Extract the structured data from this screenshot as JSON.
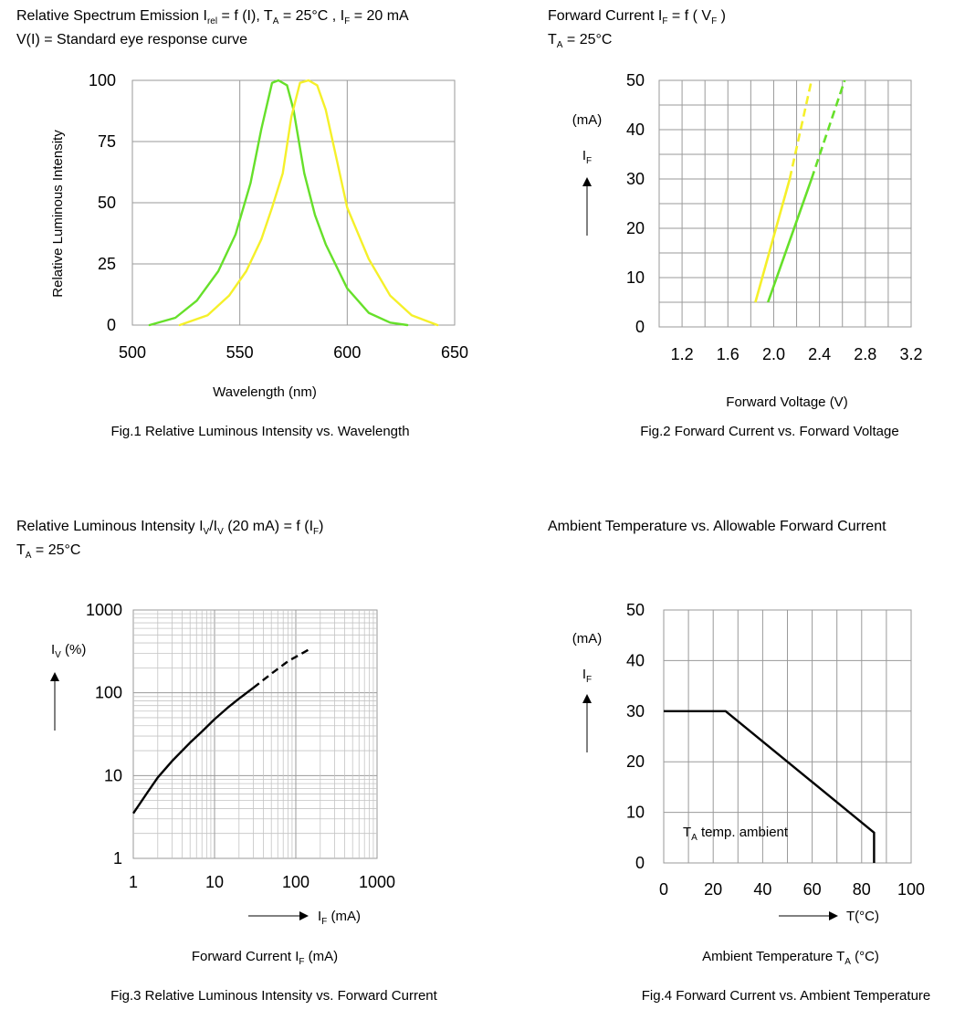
{
  "colors": {
    "green": "#66e02a",
    "yellow": "#f5f02a",
    "black": "#000000",
    "grid": "#9a9a9a"
  },
  "chart_data": [
    {
      "type": "line",
      "title": {
        "part1": "Relative Spectrum Emission I",
        "sub1": "rel",
        "part2": " = f (I), T",
        "sub2": "A",
        "part3": " = 25°C , I",
        "sub3": "F",
        "part4": " = 20  mA",
        "line2": "V(I) = Standard eye response curve"
      },
      "caption": "Fig.1 Relative Luminous Intensity vs. Wavelength",
      "xlabel": "Wavelength (nm)",
      "ylabel": "Relative Luminous Intensity",
      "xlim": [
        500,
        650
      ],
      "ylim": [
        0,
        100
      ],
      "xticks": [
        "500",
        "550",
        "600",
        "650"
      ],
      "yticks": [
        "0",
        "25",
        "50",
        "75",
        "100"
      ],
      "series": [
        {
          "name": "green",
          "x": [
            508,
            520,
            530,
            540,
            548,
            555,
            560,
            565,
            568,
            572,
            575,
            580,
            585,
            590,
            600,
            610,
            620,
            628
          ],
          "y": [
            0,
            3,
            10,
            22,
            37,
            58,
            80,
            99,
            100,
            98,
            88,
            62,
            45,
            33,
            15,
            5,
            1,
            0
          ]
        },
        {
          "name": "yellow",
          "x": [
            522,
            535,
            545,
            553,
            560,
            565,
            570,
            574,
            578,
            582,
            586,
            590,
            595,
            600,
            610,
            620,
            630,
            642
          ],
          "y": [
            0,
            4,
            12,
            22,
            35,
            48,
            62,
            85,
            99,
            100,
            98,
            88,
            68,
            48,
            27,
            12,
            4,
            0
          ]
        }
      ]
    },
    {
      "type": "line",
      "title": {
        "part1": "Forward Current I",
        "sub1": "F",
        "part2": " = f ( V",
        "sub2": "F",
        "part3": " )",
        "line2a": "T",
        "line2sub": "A",
        "line2b": " = 25°C"
      },
      "caption": "Fig.2 Forward Current vs. Forward Voltage",
      "xlabel": "Forward Voltage (V)",
      "ylabel_unit": "(mA)",
      "ylabel_sym": "I",
      "ylabel_sub": "F",
      "xlim": [
        1.0,
        3.2
      ],
      "ylim": [
        0,
        50
      ],
      "xticks": [
        "1.2",
        "1.6",
        "2.0",
        "2.4",
        "2.8",
        "3.2"
      ],
      "yticks": [
        "0",
        "10",
        "20",
        "30",
        "40",
        "50"
      ],
      "series": [
        {
          "name": "yellow",
          "solid_x": [
            1.84,
            2.14
          ],
          "solid_y": [
            5,
            30
          ],
          "dashed_x": [
            2.14,
            2.33
          ],
          "dashed_y": [
            30,
            50
          ]
        },
        {
          "name": "green",
          "solid_x": [
            1.95,
            2.33
          ],
          "solid_y": [
            5,
            30
          ],
          "dashed_x": [
            2.33,
            2.62
          ],
          "dashed_y": [
            30,
            50
          ]
        }
      ]
    },
    {
      "type": "line",
      "title": {
        "part1": "Relative Luminous Intensity I",
        "sub1": "V",
        "part2": "/I",
        "sub2": "V",
        "part3": " (20 mA) = f (I",
        "sub3": "F",
        "part4": ")",
        "line2a": "T",
        "line2sub": "A",
        "line2b": " = 25°C"
      },
      "caption": "Fig.3 Relative Luminous Intensity vs. Forward Current",
      "xlabel_a": "Forward Current I",
      "xlabel_sub": "F",
      "xlabel_b": " (mA)",
      "arrow_label_a": "I",
      "arrow_label_sub": "F",
      "arrow_label_b": " (mA)",
      "ylabel_a": "I",
      "ylabel_sub": "V",
      "ylabel_b": " (%)",
      "xscale": "log",
      "yscale": "log",
      "xlim": [
        1,
        1000
      ],
      "ylim": [
        1,
        1000
      ],
      "xticks": [
        "1",
        "10",
        "100",
        "1000"
      ],
      "yticks": [
        "1",
        "10",
        "100",
        "1000"
      ],
      "series": [
        {
          "name": "black",
          "solid_x": [
            1,
            1.5,
            2,
            3,
            5,
            7,
            10,
            15,
            20,
            30
          ],
          "solid_y": [
            3.5,
            6.3,
            9.5,
            15,
            25,
            34,
            48,
            68,
            85,
            115
          ],
          "dashed_x": [
            30,
            50,
            80,
            120,
            150
          ],
          "dashed_y": [
            115,
            170,
            240,
            300,
            340
          ]
        }
      ]
    },
    {
      "type": "line",
      "title": {
        "part1": "Ambient Temperature vs. Allowable Forward Current"
      },
      "caption": "Fig.4 Forward Current vs. Ambient Temperature",
      "xlabel_a": "Ambient Temperature T",
      "xlabel_sub": "A",
      "xlabel_b": " (°C)",
      "arrow_label": "T(°C)",
      "ylabel_unit": "(mA)",
      "ylabel_sym": "I",
      "ylabel_sub": "F",
      "annotation_a": "T",
      "annotation_sub": "A",
      "annotation_b": " temp. ambient",
      "xlim": [
        0,
        100
      ],
      "ylim": [
        0,
        50
      ],
      "xticks": [
        "0",
        "20",
        "40",
        "60",
        "80",
        "100"
      ],
      "yticks": [
        "0",
        "10",
        "20",
        "30",
        "40",
        "50"
      ],
      "series": [
        {
          "name": "black",
          "x": [
            0,
            25,
            85,
            85
          ],
          "y": [
            30,
            30,
            6,
            0
          ]
        }
      ]
    }
  ]
}
